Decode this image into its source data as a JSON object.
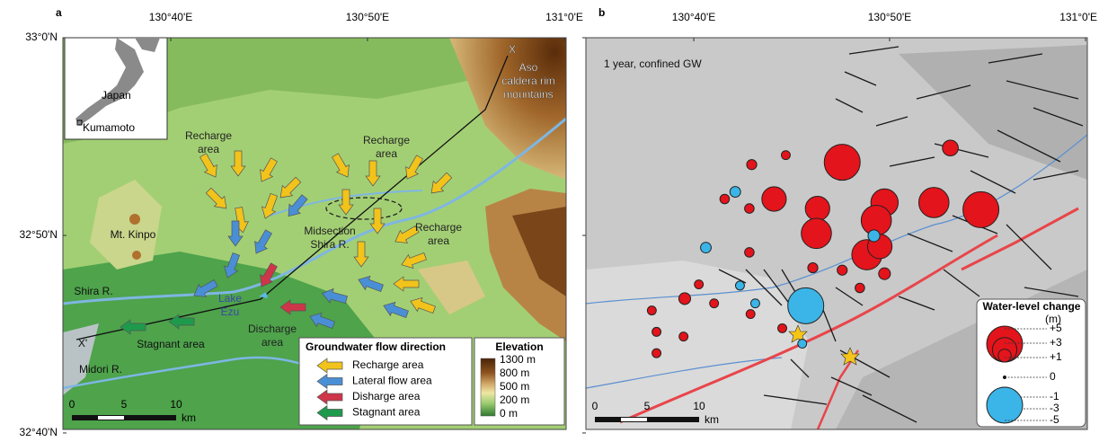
{
  "axes": {
    "lon_ticks": [
      {
        "value": 130.6667,
        "label": "130°40'E"
      },
      {
        "value": 130.8333,
        "label": "130°50'E"
      },
      {
        "value": 131.0,
        "label": "131°0'E"
      }
    ],
    "lat_ticks": [
      {
        "value": 33.0,
        "label": "33°0'N"
      },
      {
        "value": 32.8333,
        "label": "32°50'N"
      },
      {
        "value": 32.6667,
        "label": "32°40'N"
      }
    ]
  },
  "panel_a": {
    "label": "a",
    "inset": {
      "country": "Japan",
      "city": "Kumamoto"
    },
    "annotations": [
      [
        "X"
      ],
      [
        "Aso",
        "caldera rim",
        "mountains"
      ],
      [
        "Recharge",
        "area"
      ],
      [
        "Recharge",
        "area"
      ],
      [
        "Recharge",
        "area"
      ],
      [
        "Mt. Kinpo"
      ],
      [
        "Midsection",
        "Shira R."
      ],
      [
        "Shira R."
      ],
      [
        "Lake",
        "Ezu"
      ],
      [
        "Discharge",
        "area"
      ],
      [
        "Stagnant area"
      ],
      [
        "Midori R."
      ],
      [
        "X'"
      ]
    ],
    "flow_legend": {
      "title": "Groundwater flow direction",
      "items": [
        {
          "name": "Recharge area",
          "color": "#f2c31b"
        },
        {
          "name": "Lateral flow area",
          "color": "#4a8fd6"
        },
        {
          "name": "Disharge area",
          "color": "#cf3549"
        },
        {
          "name": "Stagnant area",
          "color": "#1e9a4c"
        }
      ]
    },
    "elevation_legend": {
      "title": "Elevation",
      "labels": [
        "1300 m",
        "800 m",
        "500 m",
        "200 m",
        "0 m"
      ]
    },
    "scale_bar": {
      "ticks": [
        0,
        5,
        10
      ],
      "unit": "km"
    }
  },
  "panel_b": {
    "label": "b",
    "title": "1 year, confined GW",
    "rise_color": "#e3141b",
    "fall_color": "#3bb5e8",
    "wells": [
      {
        "lon": 130.793,
        "lat": 32.895,
        "change": 5
      },
      {
        "lon": 130.885,
        "lat": 32.907,
        "change": 1.5
      },
      {
        "lon": 130.735,
        "lat": 32.864,
        "change": 3
      },
      {
        "lon": 130.772,
        "lat": 32.856,
        "change": 3
      },
      {
        "lon": 130.829,
        "lat": 32.861,
        "change": 3.5
      },
      {
        "lon": 130.871,
        "lat": 32.861,
        "change": 4
      },
      {
        "lon": 130.911,
        "lat": 32.855,
        "change": 5
      },
      {
        "lon": 130.771,
        "lat": 32.835,
        "change": 4
      },
      {
        "lon": 130.822,
        "lat": 32.846,
        "change": 4
      },
      {
        "lon": 130.814,
        "lat": 32.817,
        "change": 4
      },
      {
        "lon": 130.825,
        "lat": 32.824,
        "change": 3
      },
      {
        "lon": 130.716,
        "lat": 32.893,
        "change": 0.5
      },
      {
        "lon": 130.745,
        "lat": 32.901,
        "change": 0.3
      },
      {
        "lon": 130.693,
        "lat": 32.864,
        "change": 0.4
      },
      {
        "lon": 130.714,
        "lat": 32.856,
        "change": 0.4
      },
      {
        "lon": 130.714,
        "lat": 32.819,
        "change": 0.4
      },
      {
        "lon": 130.768,
        "lat": 32.806,
        "change": 0.5
      },
      {
        "lon": 130.793,
        "lat": 32.804,
        "change": 0.5
      },
      {
        "lon": 130.808,
        "lat": 32.789,
        "change": 0.4
      },
      {
        "lon": 130.829,
        "lat": 32.801,
        "change": 0.8
      },
      {
        "lon": 130.659,
        "lat": 32.78,
        "change": 0.8
      },
      {
        "lon": 130.671,
        "lat": 32.792,
        "change": 0.3
      },
      {
        "lon": 130.684,
        "lat": 32.776,
        "change": 0.3
      },
      {
        "lon": 130.631,
        "lat": 32.77,
        "change": 0.3
      },
      {
        "lon": 130.635,
        "lat": 32.752,
        "change": 0.3
      },
      {
        "lon": 130.658,
        "lat": 32.748,
        "change": 0.3
      },
      {
        "lon": 130.635,
        "lat": 32.734,
        "change": 0.3
      },
      {
        "lon": 130.715,
        "lat": 32.767,
        "change": 0.3
      },
      {
        "lon": 130.742,
        "lat": 32.755,
        "change": 0.3
      },
      {
        "lon": 130.762,
        "lat": 32.774,
        "change": -5
      },
      {
        "lon": 130.702,
        "lat": 32.87,
        "change": -0.6
      },
      {
        "lon": 130.677,
        "lat": 32.823,
        "change": -0.6
      },
      {
        "lon": 130.82,
        "lat": 32.833,
        "change": -0.8
      },
      {
        "lon": 130.706,
        "lat": 32.791,
        "change": -0.3
      },
      {
        "lon": 130.719,
        "lat": 32.776,
        "change": -0.3
      },
      {
        "lon": 130.759,
        "lat": 32.742,
        "change": -0.3
      }
    ],
    "legend": {
      "title": "Water-level change",
      "unit": "(m)",
      "levels": [
        {
          "value": 5,
          "label": "+5"
        },
        {
          "value": 3,
          "label": "+3"
        },
        {
          "value": 1,
          "label": "+1"
        },
        0,
        -1,
        -3,
        -5
      ]
    },
    "scale_bar": {
      "ticks": [
        0,
        5,
        10
      ],
      "unit": "km"
    }
  }
}
